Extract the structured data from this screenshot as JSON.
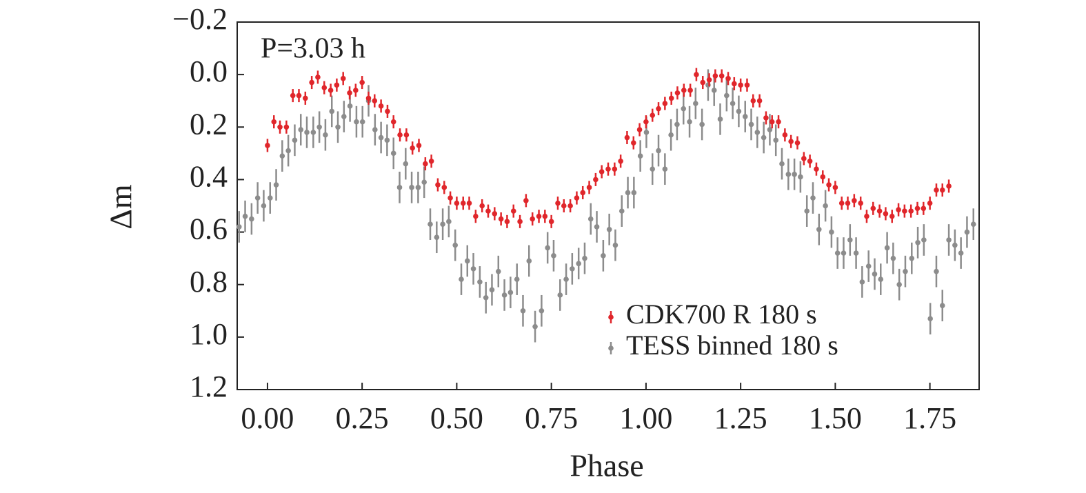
{
  "chart_data": {
    "type": "errorbar-scatter",
    "xlabel": "Phase",
    "ylabel": "Δm",
    "annotation": "P=3.03 h",
    "legend": "lower right",
    "y_inverted": true,
    "xlim": [
      -0.08,
      1.88
    ],
    "ylim": [
      -0.2,
      1.2
    ],
    "xticks": [
      {
        "value": 0,
        "label": "0.00"
      },
      0.25,
      {
        "value": 0.5,
        "label": "0.50"
      },
      0.75,
      {
        "value": 1,
        "label": "1.00"
      },
      1.25,
      {
        "value": 1.5,
        "label": "1.50"
      },
      1.75
    ],
    "yticks": [
      {
        "value": -0.2,
        "label": "−0.2"
      },
      {
        "value": 0,
        "label": "0.0"
      },
      0.2,
      0.4,
      0.6,
      0.8,
      {
        "value": 1,
        "label": "1.0"
      },
      1.2
    ],
    "series": [
      {
        "name": "CDK700 R 180 s",
        "color": "#e0262b",
        "error": 0.025,
        "x": [
          0,
          0.017,
          0.033,
          0.05,
          0.067,
          0.083,
          0.1,
          0.117,
          0.133,
          0.15,
          0.167,
          0.183,
          0.2,
          0.217,
          0.233,
          0.25,
          0.267,
          0.283,
          0.3,
          0.317,
          0.333,
          0.35,
          0.367,
          0.383,
          0.4,
          0.417,
          0.433,
          0.45,
          0.467,
          0.483,
          0.5,
          0.517,
          0.533,
          0.55,
          0.567,
          0.583,
          0.6,
          0.617,
          0.633,
          0.65,
          0.667,
          0.683,
          0.7,
          0.717,
          0.733,
          0.75,
          0.767,
          0.783,
          0.8,
          0.817,
          0.833,
          0.85,
          0.867,
          0.883,
          0.9,
          0.917,
          0.933,
          0.95,
          0.967,
          0.983,
          1.0,
          1.017,
          1.033,
          1.05,
          1.067,
          1.083,
          1.1,
          1.117,
          1.133,
          1.15,
          1.167,
          1.183,
          1.2,
          1.217,
          1.233,
          1.25,
          1.267,
          1.283,
          1.3,
          1.317,
          1.333,
          1.35,
          1.367,
          1.383,
          1.4,
          1.417,
          1.433,
          1.45,
          1.467,
          1.483,
          1.5,
          1.517,
          1.533,
          1.55,
          1.567,
          1.583,
          1.6,
          1.617,
          1.633,
          1.65,
          1.667,
          1.683,
          1.7,
          1.717,
          1.733,
          1.75,
          1.767,
          1.783,
          1.8
        ],
        "values": [
          0.27,
          0.18,
          0.2,
          0.2,
          0.08,
          0.08,
          0.09,
          0.03,
          0.01,
          0.05,
          0.06,
          0.04,
          0.015,
          0.07,
          0.06,
          0.03,
          0.09,
          0.1,
          0.12,
          0.14,
          0.18,
          0.23,
          0.23,
          0.28,
          0.27,
          0.34,
          0.33,
          0.42,
          0.43,
          0.47,
          0.49,
          0.49,
          0.49,
          0.54,
          0.5,
          0.52,
          0.53,
          0.55,
          0.56,
          0.52,
          0.56,
          0.48,
          0.55,
          0.54,
          0.54,
          0.56,
          0.49,
          0.5,
          0.5,
          0.47,
          0.45,
          0.43,
          0.4,
          0.37,
          0.36,
          0.36,
          0.33,
          0.24,
          0.26,
          0.21,
          0.18,
          0.155,
          0.13,
          0.11,
          0.09,
          0.07,
          0.06,
          0.06,
          0.0,
          0.03,
          0.02,
          0.005,
          0.005,
          0.015,
          0.035,
          0.04,
          0.04,
          0.1,
          0.1,
          0.165,
          0.18,
          0.18,
          0.23,
          0.255,
          0.26,
          0.32,
          0.33,
          0.36,
          0.39,
          0.42,
          0.43,
          0.49,
          0.49,
          0.48,
          0.49,
          0.54,
          0.51,
          0.52,
          0.53,
          0.54,
          0.515,
          0.52,
          0.52,
          0.51,
          0.51,
          0.49,
          0.44,
          0.44,
          0.425
        ]
      },
      {
        "name": "TESS binned 180 s",
        "color": "#8c8c8c",
        "error": 0.06,
        "x": [
          -0.075,
          -0.059,
          -0.042,
          -0.026,
          -0.01,
          0.007,
          0.023,
          0.039,
          0.055,
          0.072,
          0.088,
          0.104,
          0.121,
          0.137,
          0.153,
          0.17,
          0.186,
          0.202,
          0.218,
          0.235,
          0.251,
          0.267,
          0.284,
          0.3,
          0.316,
          0.333,
          0.349,
          0.365,
          0.381,
          0.398,
          0.414,
          0.43,
          0.447,
          0.463,
          0.479,
          0.496,
          0.512,
          0.528,
          0.544,
          0.561,
          0.577,
          0.593,
          0.61,
          0.626,
          0.642,
          0.659,
          0.675,
          0.691,
          0.707,
          0.724,
          0.74,
          0.756,
          0.773,
          0.789,
          0.805,
          0.822,
          0.838,
          0.854,
          0.87,
          0.887,
          0.903,
          0.919,
          0.936,
          0.952,
          0.968,
          0.985,
          1.001,
          1.017,
          1.033,
          1.05,
          1.066,
          1.082,
          1.099,
          1.115,
          1.131,
          1.148,
          1.164,
          1.18,
          1.196,
          1.213,
          1.229,
          1.245,
          1.262,
          1.278,
          1.294,
          1.311,
          1.327,
          1.343,
          1.359,
          1.376,
          1.392,
          1.408,
          1.425,
          1.441,
          1.457,
          1.474,
          1.49,
          1.506,
          1.522,
          1.539,
          1.555,
          1.571,
          1.588,
          1.604,
          1.62,
          1.637,
          1.653,
          1.669,
          1.685,
          1.702,
          1.718,
          1.734,
          1.751,
          1.767,
          1.783,
          1.8,
          1.816,
          1.832,
          1.848,
          1.865
        ],
        "values": [
          0.58,
          0.54,
          0.55,
          0.47,
          0.5,
          0.47,
          0.42,
          0.31,
          0.29,
          0.25,
          0.21,
          0.22,
          0.22,
          0.2,
          0.23,
          0.14,
          0.2,
          0.16,
          0.12,
          0.18,
          0.18,
          0.1,
          0.21,
          0.24,
          0.25,
          0.3,
          0.43,
          0.34,
          0.43,
          0.43,
          0.41,
          0.57,
          0.62,
          0.57,
          0.56,
          0.65,
          0.78,
          0.71,
          0.74,
          0.79,
          0.85,
          0.82,
          0.75,
          0.84,
          0.83,
          0.78,
          0.9,
          0.71,
          0.96,
          0.9,
          0.66,
          0.69,
          0.84,
          0.78,
          0.74,
          0.72,
          0.7,
          0.55,
          0.58,
          0.69,
          0.59,
          0.65,
          0.52,
          0.45,
          0.45,
          0.31,
          0.22,
          0.36,
          0.29,
          0.36,
          0.23,
          0.19,
          0.13,
          0.18,
          0.11,
          0.19,
          0.04,
          0.06,
          0.17,
          0.08,
          0.11,
          0.14,
          0.16,
          0.19,
          0.22,
          0.24,
          0.21,
          0.25,
          0.34,
          0.38,
          0.38,
          0.39,
          0.52,
          0.47,
          0.59,
          0.5,
          0.6,
          0.68,
          0.68,
          0.63,
          0.68,
          0.79,
          0.73,
          0.76,
          0.78,
          0.66,
          0.7,
          0.8,
          0.75,
          0.7,
          0.64,
          0.63,
          0.93,
          0.75,
          0.88,
          0.63,
          0.65,
          0.68,
          0.6,
          0.57
        ]
      }
    ]
  }
}
